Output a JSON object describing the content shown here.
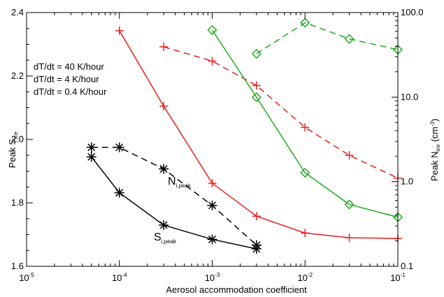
{
  "chart_data": {
    "type": "line",
    "xlabel": "Aerosol accommodation coefficient",
    "ylabel_left": {
      "main": "Peak S",
      "sub": "ice"
    },
    "ylabel_right": {
      "main": "Peak N",
      "sub": "ice",
      "unit_open": " (cm",
      "unit_sup": "-3",
      "unit_close": ")"
    },
    "x_scale": "log",
    "xlim": [
      1e-05,
      0.1
    ],
    "x_ticks": [
      {
        "value": 1e-05,
        "base": "10",
        "exp": "-5"
      },
      {
        "value": 0.0001,
        "base": "10",
        "exp": "-4"
      },
      {
        "value": 0.001,
        "base": "10",
        "exp": "-3"
      },
      {
        "value": 0.01,
        "base": "10",
        "exp": "-2"
      },
      {
        "value": 0.1,
        "base": "10",
        "exp": "-1"
      }
    ],
    "ylim_left": [
      1.6,
      2.4
    ],
    "y_ticks_left": [
      {
        "value": 1.6,
        "label": "1.6"
      },
      {
        "value": 1.8,
        "label": "1.8"
      },
      {
        "value": 2.0,
        "label": "2.0"
      },
      {
        "value": 2.2,
        "label": "2.2"
      },
      {
        "value": 2.4,
        "label": "2.4"
      }
    ],
    "y_scale_right": "log",
    "ylim_right": [
      0.1,
      100
    ],
    "y_ticks_right": [
      {
        "value": 0.1,
        "label": "0.1"
      },
      {
        "value": 1,
        "label": "1.0"
      },
      {
        "value": 10,
        "label": "10.0"
      },
      {
        "value": 100,
        "label": "100.0"
      }
    ],
    "grid": false,
    "legend": [
      {
        "label": "dT/dt = 40 K/hour",
        "color": "#1faa1f"
      },
      {
        "label": "dT/dt = 4 K/hour",
        "color": "#e8201f"
      },
      {
        "label": "dT/dt = 0.4 K/hour",
        "color": "#000000"
      }
    ],
    "annotations": [
      {
        "main": "N",
        "sub": "i,peak"
      },
      {
        "main": "S",
        "sub": "i,peak"
      }
    ],
    "series": [
      {
        "color": "#000000",
        "marker": "asterisk",
        "dash": "solid",
        "axis": "left",
        "x": [
          5e-05,
          0.0001,
          0.0003,
          0.001,
          0.003
        ],
        "y": [
          1.945,
          1.832,
          1.73,
          1.685,
          1.655
        ]
      },
      {
        "color": "#000000",
        "marker": "asterisk",
        "dash": "dashed",
        "axis": "left",
        "x": [
          5e-05,
          0.0001,
          0.0003,
          0.001,
          0.003
        ],
        "y": [
          1.975,
          1.975,
          1.907,
          1.792,
          1.667
        ]
      },
      {
        "color": "#e8201f",
        "marker": "plus",
        "dash": "solid",
        "axis": "left",
        "x": [
          0.0001,
          0.0003,
          0.001,
          0.003,
          0.01,
          0.03,
          0.1
        ],
        "y": [
          2.343,
          2.105,
          1.862,
          1.758,
          1.705,
          1.69,
          1.688
        ]
      },
      {
        "color": "#e8201f",
        "marker": "plus",
        "dash": "dashed",
        "axis": "left",
        "x": [
          0.0003,
          0.001,
          0.003,
          0.01,
          0.03,
          0.1
        ],
        "y": [
          2.292,
          2.247,
          2.17,
          2.038,
          1.95,
          1.878
        ]
      },
      {
        "color": "#1faa1f",
        "marker": "diamond",
        "dash": "solid",
        "axis": "left",
        "x": [
          0.001,
          0.003,
          0.01,
          0.03,
          0.1
        ],
        "y": [
          2.345,
          2.133,
          1.895,
          1.795,
          1.755
        ]
      },
      {
        "color": "#1faa1f",
        "marker": "diamond",
        "dash": "dashed",
        "axis": "left",
        "x": [
          0.003,
          0.01,
          0.03,
          0.1
        ],
        "y": [
          2.27,
          2.368,
          2.317,
          2.283
        ]
      }
    ]
  }
}
